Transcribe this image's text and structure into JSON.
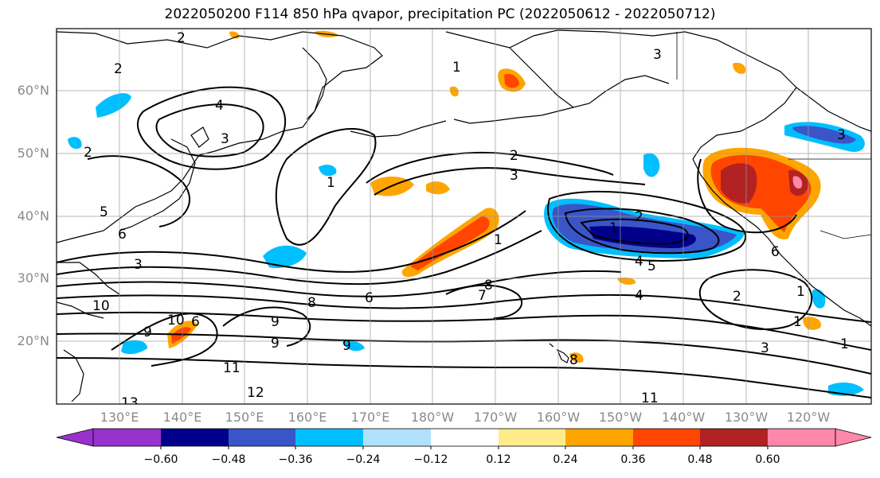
{
  "title": "2022050200 F114 850 hPa qvapor, precipitation PC (2022050612 - 2022050712)",
  "map": {
    "lat_labels": [
      "60°N",
      "50°N",
      "40°N",
      "30°N",
      "20°N"
    ],
    "lon_labels": [
      "130°E",
      "140°E",
      "150°E",
      "160°E",
      "170°E",
      "180°W",
      "170°W",
      "160°W",
      "150°W",
      "140°W",
      "130°W",
      "120°W"
    ],
    "grid": true,
    "coastline_color": "#000000"
  },
  "contour_labels": [
    "2",
    "2",
    "3",
    "4",
    "3",
    "2",
    "1",
    "3",
    "2",
    "3",
    "2",
    "1",
    "1",
    "4",
    "5",
    "6",
    "1",
    "2",
    "1",
    "1",
    "3",
    "1",
    "4",
    "7",
    "8",
    "10",
    "10",
    "8",
    "6",
    "9",
    "6",
    "9",
    "11",
    "12",
    "13",
    "11",
    "9",
    "8",
    "9",
    "6",
    "5",
    "3"
  ],
  "shaded_regions": [
    {
      "name": "gulf-of-alaska-positive",
      "level": 0.6
    },
    {
      "name": "pacific-northwest-positive",
      "level": 0.48
    },
    {
      "name": "central-pacific-negative",
      "level": -0.48
    },
    {
      "name": "dateline-positive-band",
      "level": 0.36
    },
    {
      "name": "alaska-coast-positive",
      "level": 0.36
    },
    {
      "name": "western-canada-negative",
      "level": -0.36
    }
  ],
  "colorbar": {
    "colors": [
      "#9932CC",
      "#00008B",
      "#3955C8",
      "#00BFFF",
      "#B0E2FF",
      "#FFFFFF",
      "#FFEB8A",
      "#FFA500",
      "#FF4500",
      "#B22222",
      "#FF88AA"
    ],
    "ticks": [
      "−0.60",
      "−0.48",
      "−0.36",
      "−0.24",
      "−0.12",
      "0.12",
      "0.24",
      "0.36",
      "0.48",
      "0.60"
    ],
    "extend": "both"
  }
}
